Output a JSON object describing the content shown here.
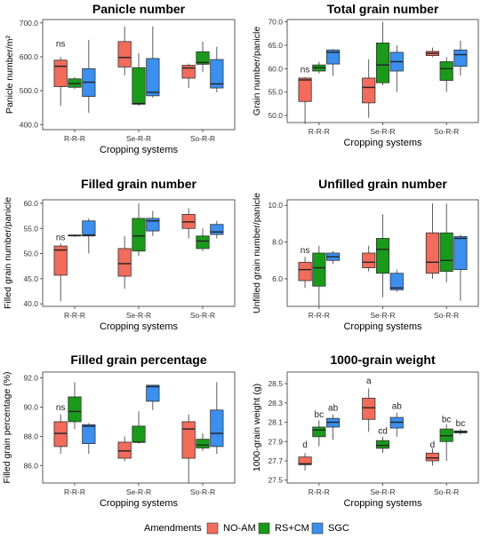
{
  "colors": {
    "NO-AM": "#F26B5B",
    "RS+CM": "#1A9A1A",
    "SGC": "#3B8FEF"
  },
  "legend": {
    "title": "Amendments",
    "entries": [
      "NO-AM",
      "RS+CM",
      "SGC"
    ]
  },
  "chart_data": [
    {
      "type": "box",
      "title": "Panicle number",
      "xlabel": "Cropping systems",
      "ylabel": "Panicle number/m²",
      "categories": [
        "R-R-R",
        "Se-R-R",
        "So-R-R"
      ],
      "ylim": [
        385,
        710
      ],
      "yticks": [
        400.0,
        500.0,
        600.0,
        700.0
      ],
      "tick_labels": [
        "400.0",
        "500.0",
        "600.0",
        "700.0"
      ],
      "annotations": [
        {
          "category": "R-R-R",
          "series": "NO-AM",
          "text": "ns",
          "y": 630
        }
      ],
      "series": [
        {
          "name": "NO-AM",
          "boxes": [
            [
              455,
              512,
              572,
              590,
              600
            ],
            [
              545,
              570,
              598,
              645,
              690
            ],
            [
              508,
              537,
              567,
              575,
              580
            ]
          ]
        },
        {
          "name": "RS+CM",
          "boxes": [
            [
              505,
              510,
              521,
              535,
              540
            ],
            [
              455,
              460,
              462,
              568,
              610
            ],
            [
              555,
              578,
              583,
              615,
              645
            ]
          ]
        },
        {
          "name": "SGC",
          "boxes": [
            [
              435,
              483,
              525,
              565,
              650
            ],
            [
              480,
              485,
              495,
              595,
              690
            ],
            [
              495,
              508,
              520,
              592,
              630
            ]
          ]
        }
      ]
    },
    {
      "type": "box",
      "title": "Total grain number",
      "xlabel": "Cropping systems",
      "ylabel": "Grain number/panicle",
      "categories": [
        "R-R-R",
        "Se-R-R",
        "So-R-R"
      ],
      "ylim": [
        48.5,
        70.5
      ],
      "yticks": [
        50.0,
        55.0,
        60.0,
        65.0,
        70.0
      ],
      "tick_labels": [
        "50.0",
        "55.0",
        "60.0",
        "65.0",
        "70.0"
      ],
      "annotations": [
        {
          "category": "R-R-R",
          "series": "NO-AM",
          "text": "ns",
          "y": 59.2
        }
      ],
      "series": [
        {
          "name": "NO-AM",
          "boxes": [
            [
              48.2,
              53.0,
              57.6,
              58.0,
              58.2
            ],
            [
              49.5,
              52.7,
              56.0,
              58.0,
              62.0
            ],
            [
              62.5,
              62.8,
              63.3,
              63.7,
              64.5
            ]
          ]
        },
        {
          "name": "RS+CM",
          "boxes": [
            [
              59.0,
              59.5,
              60.2,
              60.8,
              61.5
            ],
            [
              56.5,
              57.0,
              60.8,
              65.5,
              70.0
            ],
            [
              55.0,
              57.5,
              60.0,
              61.5,
              62.5
            ]
          ]
        },
        {
          "name": "SGC",
          "boxes": [
            [
              58.5,
              61.0,
              63.5,
              64.0,
              64.2
            ],
            [
              55.0,
              59.5,
              61.5,
              63.5,
              65.0
            ],
            [
              58.5,
              60.5,
              63.0,
              64.0,
              66.0
            ]
          ]
        }
      ]
    },
    {
      "type": "box",
      "title": "Filled grain number",
      "xlabel": "Cropping systems",
      "ylabel": "Filled grain number/panicle",
      "categories": [
        "R-R-R",
        "Se-R-R",
        "So-R-R"
      ],
      "ylim": [
        39.5,
        60.7
      ],
      "yticks": [
        40.0,
        45.0,
        50.0,
        55.0,
        60.0
      ],
      "tick_labels": [
        "40.0",
        "45.0",
        "50.0",
        "55.0",
        "60.0"
      ],
      "annotations": [
        {
          "category": "R-R-R",
          "series": "NO-AM",
          "text": "ns",
          "y": 52.7
        }
      ],
      "series": [
        {
          "name": "NO-AM",
          "boxes": [
            [
              40.5,
              45.7,
              50.7,
              51.5,
              52.0
            ],
            [
              43.0,
              45.5,
              48.0,
              51.0,
              53.5
            ],
            [
              53.0,
              55.0,
              56.3,
              57.8,
              59.0
            ]
          ]
        },
        {
          "name": "RS+CM",
          "boxes": [
            [
              53.3,
              53.5,
              53.6,
              53.7,
              53.8
            ],
            [
              49.5,
              50.5,
              53.5,
              57.0,
              60.0
            ],
            [
              50.5,
              51.0,
              52.5,
              53.5,
              55.0
            ]
          ]
        },
        {
          "name": "SGC",
          "boxes": [
            [
              50.0,
              53.5,
              53.7,
              56.5,
              57.0
            ],
            [
              53.5,
              54.5,
              56.5,
              57.0,
              58.5
            ],
            [
              53.0,
              53.8,
              54.3,
              55.8,
              56.5
            ]
          ]
        }
      ]
    },
    {
      "type": "box",
      "title": "Unfilled grain number",
      "xlabel": "Cropping systems",
      "ylabel": "Unfilled grain number/panicle",
      "categories": [
        "R-R-R",
        "Se-R-R",
        "So-R-R"
      ],
      "ylim": [
        4.5,
        10.3
      ],
      "yticks": [
        6.0,
        8.0,
        10.0
      ],
      "tick_labels": [
        "6.0",
        "8.0",
        "10.0"
      ],
      "annotations": [
        {
          "category": "R-R-R",
          "series": "NO-AM",
          "text": "ns",
          "y": 7.4
        }
      ],
      "series": [
        {
          "name": "NO-AM",
          "boxes": [
            [
              5.5,
              5.9,
              6.5,
              6.9,
              7.2
            ],
            [
              6.4,
              6.6,
              6.9,
              7.4,
              7.8
            ],
            [
              6.0,
              6.3,
              6.9,
              8.5,
              10.1
            ]
          ]
        },
        {
          "name": "RS+CM",
          "boxes": [
            [
              4.5,
              5.6,
              6.6,
              7.4,
              7.8
            ],
            [
              5.0,
              6.3,
              7.6,
              8.2,
              9.5
            ],
            [
              5.8,
              6.4,
              7.0,
              8.5,
              10.1
            ]
          ]
        },
        {
          "name": "SGC",
          "boxes": [
            [
              6.8,
              7.0,
              7.2,
              7.4,
              7.5
            ],
            [
              5.3,
              5.4,
              5.5,
              6.3,
              6.5
            ],
            [
              4.8,
              6.5,
              8.2,
              8.3,
              8.4
            ]
          ]
        }
      ]
    },
    {
      "type": "box",
      "title": "Filled grain percentage",
      "xlabel": "Cropping systems",
      "ylabel": "Filled grain percentage (%)",
      "categories": [
        "R-R-R",
        "Se-R-R",
        "So-R-R"
      ],
      "ylim": [
        84.8,
        92.4
      ],
      "yticks": [
        86.0,
        88.0,
        90.0,
        92.0
      ],
      "tick_labels": [
        "86.0",
        "88.0",
        "90.0",
        "92.0"
      ],
      "annotations": [
        {
          "category": "R-R-R",
          "series": "NO-AM",
          "text": "ns",
          "y": 89.8
        }
      ],
      "series": [
        {
          "name": "NO-AM",
          "boxes": [
            [
              86.8,
              87.3,
              88.2,
              89.0,
              89.5
            ],
            [
              86.3,
              86.5,
              87.0,
              87.6,
              88.0
            ],
            [
              84.8,
              86.5,
              88.5,
              89.0,
              89.5
            ]
          ]
        },
        {
          "name": "RS+CM",
          "boxes": [
            [
              88.5,
              89.0,
              89.7,
              90.7,
              91.7
            ],
            [
              87.5,
              87.6,
              87.6,
              88.7,
              89.7
            ],
            [
              87.0,
              87.2,
              87.4,
              87.8,
              88.2
            ]
          ]
        },
        {
          "name": "SGC",
          "boxes": [
            [
              86.8,
              87.5,
              88.7,
              88.8,
              88.9
            ],
            [
              89.8,
              90.4,
              91.4,
              91.5,
              91.5
            ],
            [
              86.8,
              87.3,
              88.2,
              89.8,
              91.7
            ]
          ]
        }
      ]
    },
    {
      "type": "box",
      "title": "1000-grain weight",
      "xlabel": "Cropping systems",
      "ylabel": "1000-grain weight (g)",
      "categories": [
        "R-R-R",
        "Se-R-R",
        "So-R-R"
      ],
      "ylim": [
        27.47,
        28.62
      ],
      "yticks": [
        27.5,
        27.7,
        27.9,
        28.1,
        28.3,
        28.5
      ],
      "tick_labels": [
        "27.5",
        "27.7",
        "27.9",
        "28.1",
        "28.3",
        "28.5"
      ],
      "annotations": [
        {
          "category": "R-R-R",
          "series": "NO-AM",
          "text": "d",
          "y": 27.84
        },
        {
          "category": "R-R-R",
          "series": "RS+CM",
          "text": "bc",
          "y": 28.15
        },
        {
          "category": "R-R-R",
          "series": "SGC",
          "text": "ab",
          "y": 28.22
        },
        {
          "category": "Se-R-R",
          "series": "NO-AM",
          "text": "a",
          "y": 28.5
        },
        {
          "category": "Se-R-R",
          "series": "RS+CM",
          "text": "cd",
          "y": 27.98
        },
        {
          "category": "Se-R-R",
          "series": "SGC",
          "text": "ab",
          "y": 28.24
        },
        {
          "category": "So-R-R",
          "series": "NO-AM",
          "text": "d",
          "y": 27.84
        },
        {
          "category": "So-R-R",
          "series": "RS+CM",
          "text": "bc",
          "y": 28.1
        },
        {
          "category": "So-R-R",
          "series": "SGC",
          "text": "bc",
          "y": 28.06
        }
      ],
      "series": [
        {
          "name": "NO-AM",
          "boxes": [
            [
              27.6,
              27.66,
              27.67,
              27.74,
              27.78
            ],
            [
              28.0,
              28.13,
              28.25,
              28.35,
              28.45
            ],
            [
              27.65,
              27.7,
              27.73,
              27.78,
              27.83
            ]
          ]
        },
        {
          "name": "RS+CM",
          "boxes": [
            [
              27.85,
              27.95,
              28.02,
              28.05,
              28.12
            ],
            [
              27.78,
              27.83,
              27.86,
              27.91,
              27.95
            ],
            [
              27.7,
              27.9,
              27.96,
              28.03,
              28.08
            ]
          ]
        },
        {
          "name": "SGC",
          "boxes": [
            [
              27.92,
              28.05,
              28.1,
              28.14,
              28.18
            ],
            [
              27.95,
              28.04,
              28.1,
              28.15,
              28.2
            ],
            [
              27.97,
              27.99,
              28.0,
              28.01,
              28.03
            ]
          ]
        }
      ]
    }
  ]
}
